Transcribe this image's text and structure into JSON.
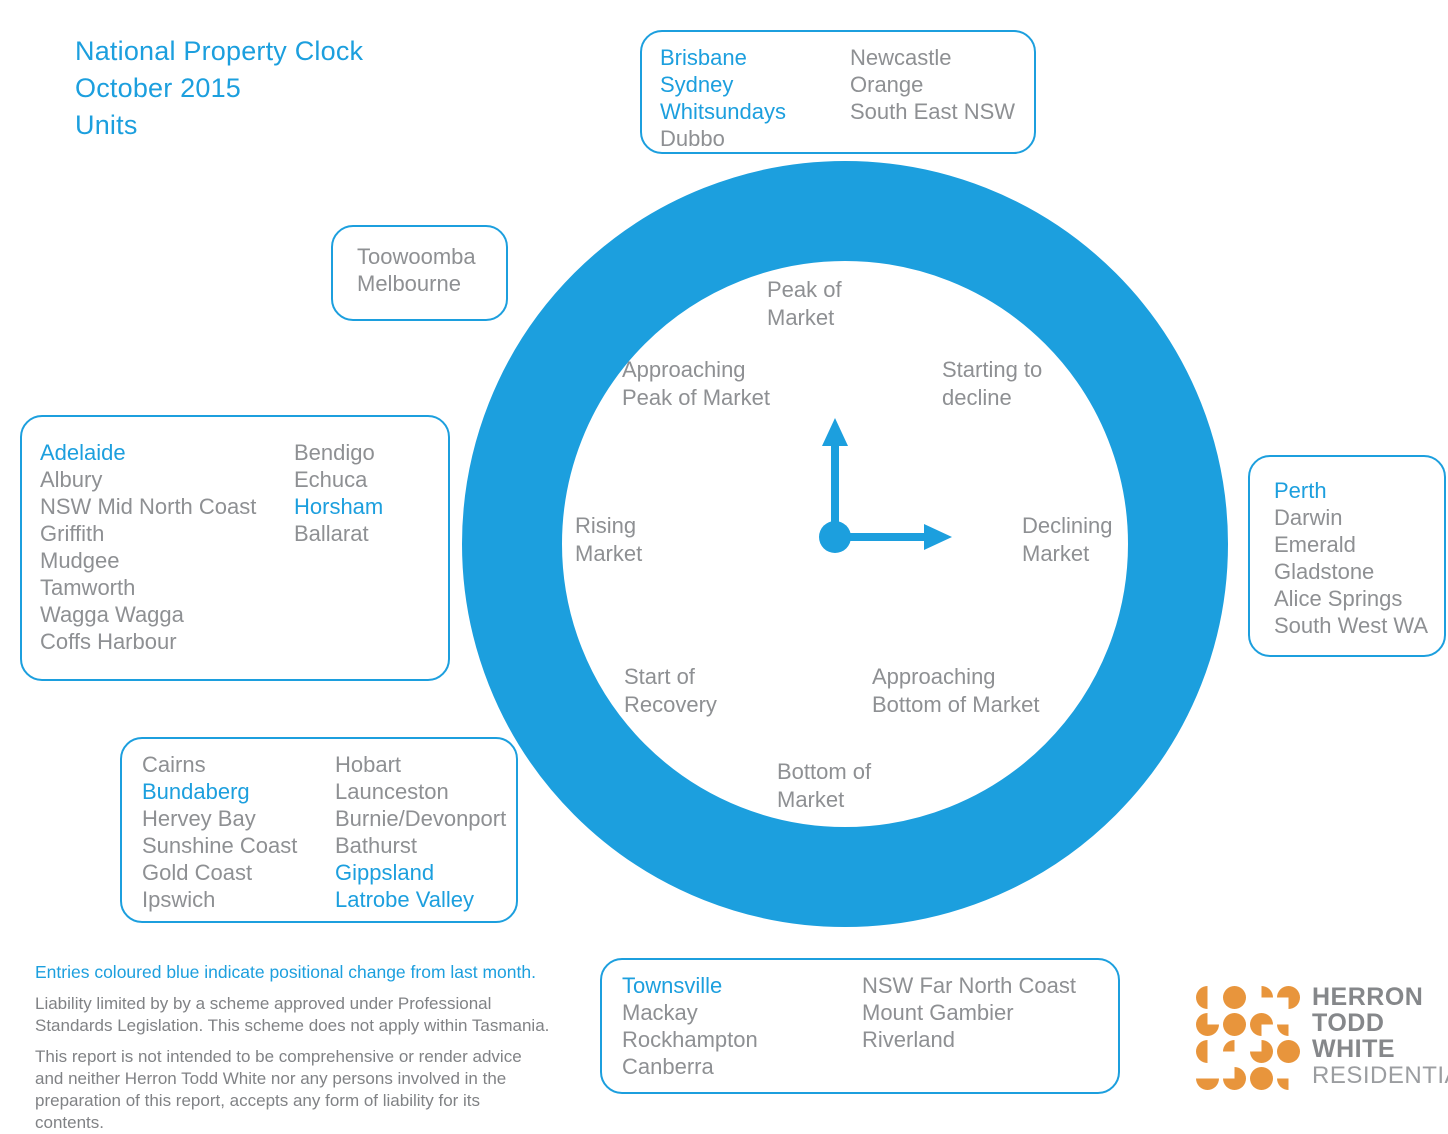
{
  "title": "National Property Clock\nOctober 2015\nUnits",
  "colors": {
    "blue": "#1C9FDE",
    "gray": "#8E9093",
    "note-gray": "#808285",
    "logo-gray": "#85878A",
    "logo-light": "#9B9DA0",
    "orange": "#E8953C"
  },
  "clock": {
    "stages": {
      "peak": "Peak of\nMarket",
      "starting_to_decline": "Starting to\ndecline",
      "declining": "Declining\nMarket",
      "approaching_bottom": "Approaching\nBottom of Market",
      "bottom": "Bottom of\nMarket",
      "start_of_recovery": "Start of\nRecovery",
      "rising": "Rising\nMarket",
      "approaching_peak": "Approaching\nPeak of Market"
    },
    "hands": {
      "hour": "up",
      "minute": "right"
    }
  },
  "boxes": {
    "peak": {
      "col1": [
        {
          "label": "Brisbane",
          "changed": true
        },
        {
          "label": "Sydney",
          "changed": true
        },
        {
          "label": "Whitsundays",
          "changed": true
        },
        {
          "label": "Dubbo",
          "changed": false
        }
      ],
      "col2": [
        {
          "label": "Newcastle",
          "changed": false
        },
        {
          "label": "Orange",
          "changed": false
        },
        {
          "label": "South East NSW",
          "changed": false
        }
      ]
    },
    "approaching_peak": {
      "col1": [
        {
          "label": "Toowoomba",
          "changed": false
        },
        {
          "label": "Melbourne",
          "changed": false
        }
      ]
    },
    "rising": {
      "col1": [
        {
          "label": "Adelaide",
          "changed": true
        },
        {
          "label": "Albury",
          "changed": false
        },
        {
          "label": "NSW Mid North Coast",
          "changed": false
        },
        {
          "label": "Griffith",
          "changed": false
        },
        {
          "label": "Mudgee",
          "changed": false
        },
        {
          "label": "Tamworth",
          "changed": false
        },
        {
          "label": "Wagga Wagga",
          "changed": false
        },
        {
          "label": "Coffs Harbour",
          "changed": false
        }
      ],
      "col2": [
        {
          "label": "Bendigo",
          "changed": false
        },
        {
          "label": "Echuca",
          "changed": false
        },
        {
          "label": "Horsham",
          "changed": true
        },
        {
          "label": "Ballarat",
          "changed": false
        }
      ]
    },
    "declining": {
      "col1": [
        {
          "label": "Perth",
          "changed": true
        },
        {
          "label": "Darwin",
          "changed": false
        },
        {
          "label": "Emerald",
          "changed": false
        },
        {
          "label": "Gladstone",
          "changed": false
        },
        {
          "label": "Alice Springs",
          "changed": false
        },
        {
          "label": "South West WA",
          "changed": false
        }
      ]
    },
    "bottom": {
      "col1": [
        {
          "label": "Cairns",
          "changed": false
        },
        {
          "label": "Bundaberg",
          "changed": true
        },
        {
          "label": "Hervey Bay",
          "changed": false
        },
        {
          "label": "Sunshine Coast",
          "changed": false
        },
        {
          "label": "Gold Coast",
          "changed": false
        },
        {
          "label": "Ipswich",
          "changed": false
        }
      ],
      "col2": [
        {
          "label": "Hobart",
          "changed": false
        },
        {
          "label": "Launceston",
          "changed": false
        },
        {
          "label": "Burnie/Devonport",
          "changed": false
        },
        {
          "label": "Bathurst",
          "changed": false
        },
        {
          "label": "Gippsland",
          "changed": true
        },
        {
          "label": "Latrobe Valley",
          "changed": true
        }
      ]
    },
    "start_of_recovery": {
      "col1": [
        {
          "label": "Townsville",
          "changed": true
        },
        {
          "label": "Mackay",
          "changed": false
        },
        {
          "label": "Rockhampton",
          "changed": false
        },
        {
          "label": "Canberra",
          "changed": false
        }
      ],
      "col2": [
        {
          "label": "NSW Far North Coast",
          "changed": false
        },
        {
          "label": "Mount Gambier",
          "changed": false
        },
        {
          "label": "Riverland",
          "changed": false
        }
      ]
    }
  },
  "notes": {
    "legend": "Entries coloured blue indicate positional change from last month.",
    "liability": "Liability limited by by a scheme approved under Professional\nStandards Legislation. This scheme does not apply within Tasmania.",
    "disclaimer": "This report is not intended to be comprehensive or render advice\nand neither Herron Todd White nor any persons involved in the\npreparation of this report, accepts any form of liability for its\ncontents."
  },
  "logo": {
    "name_lines": [
      "HERRON",
      "TODD",
      "WHITE"
    ],
    "sub": "RESIDENTIAL",
    "glyphs": [
      "half-left",
      "full",
      "quarter-tr",
      "tq-no-bl",
      "tq-no-tr",
      "full",
      "tq-no-br",
      "quarter-bl",
      "half-left",
      "quarter-tl",
      "tq-no-tl",
      "full",
      "half-bottom",
      "tq-no-tl",
      "full",
      "quarter-bl"
    ]
  }
}
